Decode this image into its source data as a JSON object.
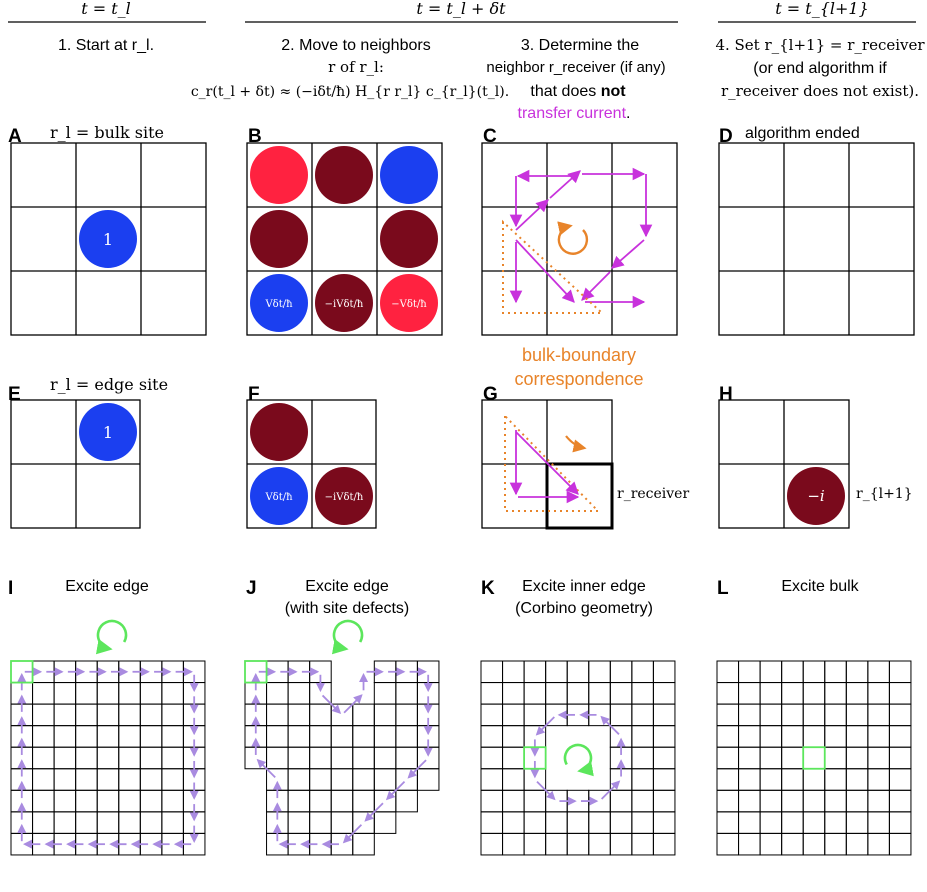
{
  "headers": {
    "col1_time": "t = t_l",
    "col23_time": "t = t_l + δt",
    "col4_time": "t = t_{l+1}",
    "step1": "1. Start at r_l.",
    "step2_line1": "2. Move to neighbors",
    "step2_line2": "r of r_l:",
    "step2_line3": "c_r(t_l + δt) ≈ (−iδt/ħ) H_{r r_l} c_{r_l}(t_l).",
    "step3_line1": "3. Determine the",
    "step3_line2": "neighbor r_receiver (if any)",
    "step3_line3_pre": "that does ",
    "step3_line3_bold": "not",
    "step3_line4": "transfer current",
    "step3_line4_end": ".",
    "step4_line1": "4. Set r_{l+1} = r_receiver",
    "step4_line2": "(or end algorithm if",
    "step4_line3": "r_receiver does not exist)."
  },
  "panels": {
    "A": {
      "letter": "A",
      "label": "r_l = bulk site",
      "site_value": "1"
    },
    "B": {
      "letter": "B",
      "values": [
        "Vδt/ħ",
        "−iVδt/ħ",
        "−Vδt/ħ"
      ]
    },
    "C": {
      "letter": "C"
    },
    "D": {
      "letter": "D",
      "label": "algorithm ended"
    },
    "E": {
      "letter": "E",
      "label": "r_l = edge site",
      "site_value": "1"
    },
    "F": {
      "letter": "F",
      "values": [
        "Vδt/ħ",
        "−iVδt/ħ"
      ]
    },
    "G": {
      "letter": "G",
      "receiver_label": "r_receiver"
    },
    "H": {
      "letter": "H",
      "site_value": "−i",
      "next_label": "r_{l+1}"
    },
    "I": {
      "letter": "I",
      "title": "Excite edge"
    },
    "J": {
      "letter": "J",
      "title_line1": "Excite edge",
      "title_line2": "(with site defects)"
    },
    "K": {
      "letter": "K",
      "title_line1": "Excite inner edge",
      "title_line2": "(Corbino geometry)"
    },
    "L": {
      "letter": "L",
      "title": "Excite bulk"
    }
  },
  "annotation": {
    "line1": "bulk-boundary",
    "line2": "correspondence"
  },
  "colors": {
    "blue": "#1b3ff0",
    "dark_red": "#7a0a1c",
    "bright_red": "#ff2240",
    "magenta": "#c832dc",
    "orange": "#e8842a",
    "lavender": "#a98be0",
    "green": "#5ce65c"
  }
}
